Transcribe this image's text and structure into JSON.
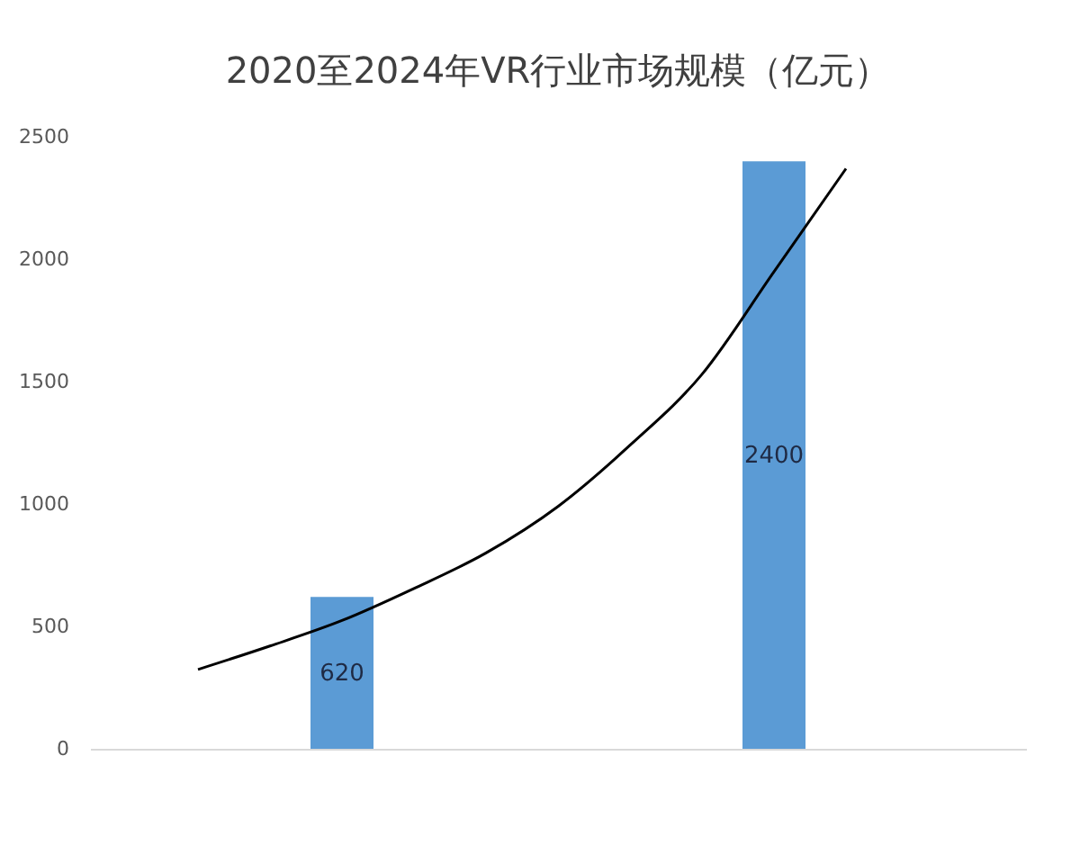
{
  "chart_data": {
    "type": "bar",
    "title": "2020至2024年VR行业市场规模（亿元）",
    "categories": [
      null,
      null,
      null,
      null,
      null,
      null,
      null,
      null,
      null,
      null,
      null,
      null,
      null
    ],
    "ylim": [
      0,
      2500
    ],
    "yticks": [
      0,
      500,
      1000,
      1500,
      2000,
      2500
    ],
    "series": [
      {
        "color": "#5b9bd5",
        "values": [
          null,
          null,
          null,
          620,
          null,
          null,
          null,
          null,
          null,
          2400,
          null,
          null,
          null
        ],
        "value_labels": [
          null,
          null,
          null,
          "620",
          null,
          null,
          null,
          null,
          null,
          "2400",
          null,
          null,
          null
        ]
      },
      {
        "type": "line",
        "color": "#000000",
        "values": [
          null,
          324,
          420,
          524,
          655,
          800,
          990,
          1240,
          1530,
          1949,
          2370,
          null,
          null
        ]
      }
    ],
    "grid": false,
    "tick_labels": "y"
  }
}
